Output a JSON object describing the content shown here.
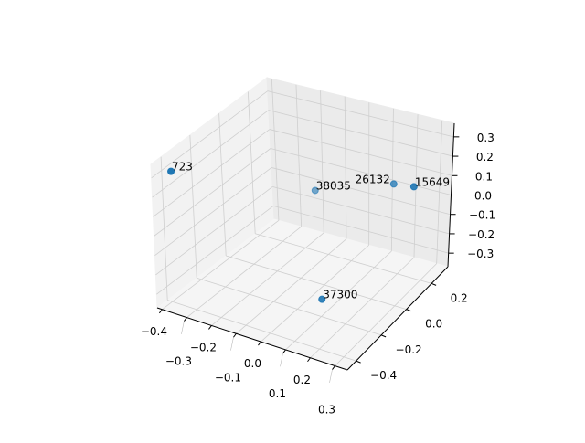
{
  "chart_data": {
    "type": "scatter3d",
    "title": "",
    "xlabel": "",
    "ylabel": "",
    "zlabel": "",
    "xlim": [
      -0.42,
      0.35
    ],
    "ylim": [
      -0.47,
      0.33
    ],
    "zlim": [
      -0.37,
      0.37
    ],
    "xticks": [
      -0.4,
      -0.3,
      -0.2,
      -0.1,
      0.0,
      0.1,
      0.2,
      0.3
    ],
    "yticks": [
      -0.4,
      -0.2,
      0.0,
      0.2
    ],
    "zticks": [
      -0.3,
      -0.2,
      -0.1,
      0.0,
      0.1,
      0.2,
      0.3
    ],
    "xtick_labels": [
      "−0.4",
      "−0.3",
      "−0.2",
      "−0.1",
      "0.0",
      "0.1",
      "0.2",
      "0.3"
    ],
    "ytick_labels": [
      "−0.4",
      "−0.2",
      "0.0",
      "0.2"
    ],
    "ztick_labels": [
      "−0.3",
      "−0.2",
      "−0.1",
      "0.0",
      "0.1",
      "0.2",
      "0.3"
    ],
    "grid": true,
    "marker_color": "#1f77b4",
    "points": [
      {
        "label": "723",
        "x": -0.366,
        "y": -0.43,
        "z": 0.333
      },
      {
        "label": "38035",
        "x": -0.112,
        "y": 0.13,
        "z": 0.0
      },
      {
        "label": "26132",
        "x": 0.119,
        "y": 0.306,
        "z": 0.0
      },
      {
        "label": "15649",
        "x": 0.196,
        "y": 0.322,
        "z": 0.0
      },
      {
        "label": "37300",
        "x": 0.092,
        "y": -0.182,
        "z": -0.296
      }
    ]
  }
}
